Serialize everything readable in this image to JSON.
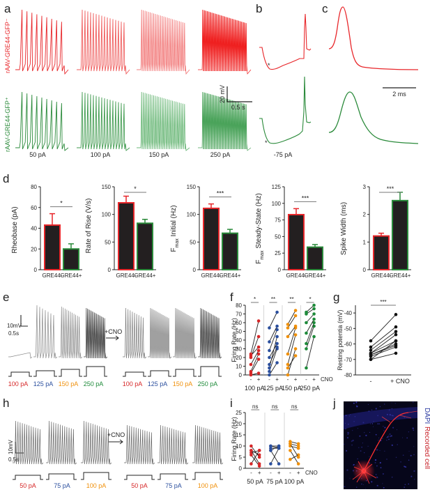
{
  "panels": [
    "a",
    "b",
    "c",
    "d",
    "e",
    "f",
    "g",
    "h",
    "i",
    "j"
  ],
  "colors": {
    "neg": "#e8262a",
    "pos": "#2a8a3a",
    "bar": "#231f20",
    "c100": "#d62728",
    "c125": "#2b4f9e",
    "c150": "#f0900a",
    "c250": "#1e8b3a",
    "trace_grey": "#555555"
  },
  "a": {
    "neg_label": "rAAV-GRE44-GFP⁻",
    "pos_label": "rAAV-GRE44-GFP⁺",
    "currents": [
      "50 pA",
      "100 pA",
      "150 pA",
      "250 pA"
    ],
    "spike_counts": [
      9,
      16,
      26,
      48
    ],
    "scale_v": "20 mV",
    "scale_t": "0.5 s"
  },
  "b": {
    "current": "-75 pA",
    "marker": "*"
  },
  "c": {
    "scale": "2 ms"
  },
  "d": {
    "cats": [
      "GRE44-",
      "GRE44+"
    ],
    "charts": [
      {
        "ylabel": "Rheobase (pA)",
        "ylim": [
          0,
          80
        ],
        "ticks": [
          "0",
          "20",
          "40",
          "60",
          "80"
        ],
        "values": [
          43,
          20
        ],
        "err": [
          11,
          5
        ],
        "sig": "*"
      },
      {
        "ylabel": "Rate of Rise (V/s)",
        "ylim": [
          0,
          150
        ],
        "ticks": [
          "0",
          "50",
          "100",
          "150"
        ],
        "values": [
          121,
          84
        ],
        "err": [
          12,
          7
        ],
        "sig": "*"
      },
      {
        "ylabel_main": "F",
        "ylabel_sub": "max",
        "ylabel_rest": " Initial (Hz)",
        "ylim": [
          0,
          150
        ],
        "ticks": [
          "0",
          "50",
          "100",
          "150"
        ],
        "values": [
          111,
          66
        ],
        "err": [
          8,
          7
        ],
        "sig": "***"
      },
      {
        "ylabel_main": "F",
        "ylabel_sub": "max",
        "ylabel_rest": " Steady-State (Hz)",
        "ylim": [
          0,
          125
        ],
        "ticks": [
          "0",
          "25",
          "50",
          "75",
          "100",
          "125"
        ],
        "values": [
          83,
          34
        ],
        "err": [
          9,
          4
        ],
        "sig": "***"
      },
      {
        "ylabel": "Spike Width (ms)",
        "ylim": [
          0,
          3
        ],
        "ticks": [
          "0",
          "1",
          "2",
          "3"
        ],
        "values": [
          1.22,
          2.5
        ],
        "err": [
          0.1,
          0.3
        ],
        "sig": "***"
      }
    ]
  },
  "e": {
    "scale_v": "10mV",
    "scale_t": "0.5s",
    "cno": "+CNO",
    "currents": [
      "100 pA",
      "125 pA",
      "150 pA",
      "250 pA"
    ],
    "spike_counts_pre": [
      0,
      7,
      11,
      17
    ],
    "spike_counts_post": [
      9,
      14,
      14,
      16
    ]
  },
  "f": {
    "ylabel": "Firing Rate (Hz)",
    "ylim": [
      0,
      80
    ],
    "ticks": [
      "0",
      "10",
      "20",
      "30",
      "40",
      "50",
      "60",
      "70",
      "80"
    ],
    "groups": [
      {
        "label": "100 pA",
        "color": "c100",
        "sig": "*",
        "pairs": [
          [
            0,
            2
          ],
          [
            2,
            18
          ],
          [
            4,
            24
          ],
          [
            12,
            28
          ],
          [
            20,
            44
          ],
          [
            22,
            32
          ],
          [
            24,
            62
          ]
        ]
      },
      {
        "label": "125 pA",
        "color": "c125",
        "sig": "**",
        "pairs": [
          [
            0,
            14
          ],
          [
            4,
            30
          ],
          [
            8,
            44
          ],
          [
            12,
            32
          ],
          [
            20,
            36
          ],
          [
            28,
            52
          ],
          [
            38,
            56
          ],
          [
            54,
            72
          ]
        ]
      },
      {
        "label": "150 pA",
        "color": "c150",
        "sig": "**",
        "pairs": [
          [
            0,
            30
          ],
          [
            8,
            22
          ],
          [
            12,
            46
          ],
          [
            24,
            54
          ],
          [
            44,
            56
          ],
          [
            54,
            68
          ],
          [
            58,
            74
          ]
        ]
      },
      {
        "label": "250 pA",
        "color": "c250",
        "sig": "*",
        "pairs": [
          [
            8,
            44
          ],
          [
            30,
            56
          ],
          [
            36,
            60
          ],
          [
            48,
            64
          ],
          [
            60,
            70
          ],
          [
            70,
            76
          ],
          [
            72,
            80
          ]
        ]
      }
    ],
    "minus": "-",
    "plus": "+",
    "cno": "CNO"
  },
  "g": {
    "ylabel": "Resting potentia (mV)",
    "ylim": [
      -80,
      -35
    ],
    "ticks": [
      "-40",
      "-50",
      "-60",
      "-70",
      "-80"
    ],
    "sig": "***",
    "pairs": [
      [
        -62,
        -49
      ],
      [
        -64,
        -52
      ],
      [
        -66,
        -54
      ],
      [
        -66,
        -58
      ],
      [
        -67,
        -60
      ],
      [
        -67,
        -61
      ],
      [
        -68,
        -62
      ],
      [
        -70,
        -66
      ],
      [
        -70,
        -58
      ],
      [
        -58,
        -41
      ]
    ],
    "minus": "-",
    "plus": "+ CNO"
  },
  "h": {
    "scale_v": "10mV",
    "scale_t": "0.5s",
    "cno": "+CNO",
    "currents": [
      "50 pA",
      "75 pA",
      "100 pA"
    ],
    "spike_counts_pre": [
      12,
      12,
      12
    ],
    "spike_counts_post": [
      12,
      12,
      13
    ]
  },
  "i": {
    "ylabel": "Firing Rate (Hz)",
    "ylim": [
      0,
      25
    ],
    "ticks": [
      "0",
      "5",
      "10",
      "15",
      "20",
      "25"
    ],
    "groups": [
      {
        "label": "50 pA",
        "color": "c100",
        "sig": "ns",
        "pairs": [
          [
            2,
            8
          ],
          [
            6,
            1
          ],
          [
            7,
            8
          ],
          [
            8,
            6
          ],
          [
            8,
            2
          ],
          [
            10,
            5
          ]
        ]
      },
      {
        "label": "75 pA",
        "color": "c125",
        "sig": "ns",
        "pairs": [
          [
            2,
            9
          ],
          [
            8,
            10
          ],
          [
            8,
            2
          ],
          [
            9,
            9
          ],
          [
            10,
            9
          ],
          [
            10,
            10
          ]
        ]
      },
      {
        "label": "100 pA",
        "color": "c150",
        "sig": "ns",
        "pairs": [
          [
            4,
            6
          ],
          [
            8,
            2
          ],
          [
            10,
            9
          ],
          [
            11,
            10
          ],
          [
            11,
            5
          ],
          [
            12,
            11
          ]
        ]
      }
    ],
    "minus": "-",
    "plus": "+",
    "cno": "CNO"
  },
  "j": {
    "label_a": "DAPI",
    "label_b": "Recorded cell"
  }
}
